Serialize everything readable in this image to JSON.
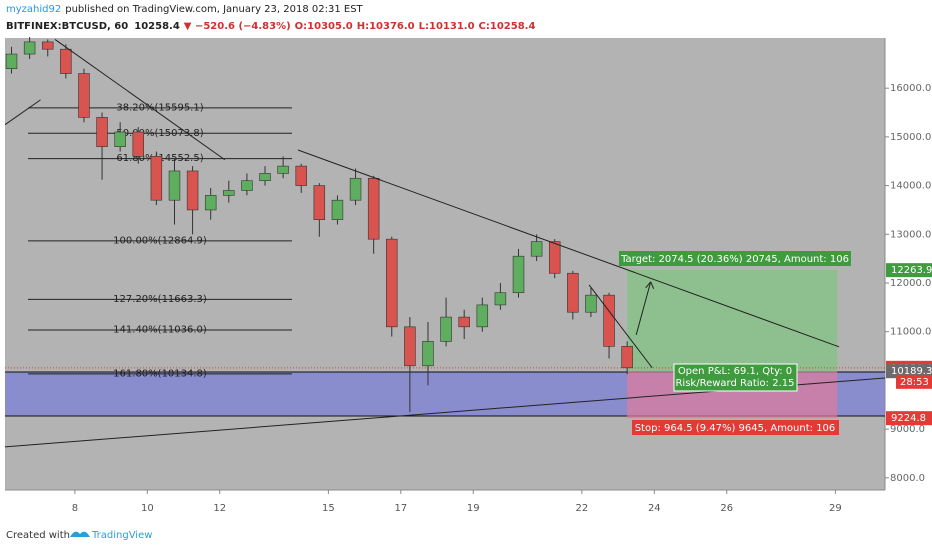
{
  "header": {
    "author": "myzahid92",
    "published": "published on TradingView.com, January 23, 2018 02:31 EST"
  },
  "chart_data": {
    "type": "candlestick",
    "symbol": "BITFINEX:BTCUSD, 60",
    "last": 10258.4,
    "change": "▼ −520.6 (−4.83%)",
    "ohlc": [
      "O:10305.0",
      "H:10376.0",
      "L:10131.0",
      "C:10258.4"
    ],
    "x": [
      6.25,
      6.75,
      7.25,
      7.75,
      8.25,
      8.75,
      9.25,
      9.75,
      10.25,
      10.75,
      11.25,
      11.75,
      12.25,
      12.75,
      13.25,
      13.75,
      14.25,
      14.75,
      15.25,
      15.75,
      16.25,
      16.75,
      17.25,
      17.75,
      18.25,
      18.75,
      19.25,
      19.75,
      20.25,
      20.75,
      21.25,
      21.75,
      22.25,
      22.75,
      23.25
    ],
    "open": [
      16400,
      16700,
      16950,
      16800,
      16300,
      15400,
      14800,
      15100,
      14600,
      13700,
      14300,
      13500,
      13800,
      13900,
      14100,
      14250,
      14400,
      14000,
      13300,
      13700,
      14150,
      12900,
      11100,
      10300,
      10800,
      11300,
      11100,
      11550,
      11800,
      12550,
      12850,
      12200,
      11400,
      11750,
      10700
    ],
    "high": [
      16850,
      17050,
      17000,
      16900,
      16400,
      15500,
      15300,
      15200,
      14700,
      14550,
      14400,
      13950,
      14100,
      14250,
      14400,
      14600,
      14450,
      14050,
      13800,
      14350,
      14200,
      12950,
      11300,
      11200,
      11700,
      11450,
      11700,
      12000,
      12700,
      13000,
      12900,
      12250,
      11900,
      11800,
      10800
    ],
    "low": [
      16300,
      16600,
      16650,
      16200,
      15300,
      14120,
      14700,
      14450,
      13600,
      13200,
      13000,
      13300,
      13650,
      13800,
      14000,
      14150,
      13850,
      12950,
      13200,
      13600,
      12600,
      10900,
      9350,
      9900,
      10700,
      10850,
      11000,
      11450,
      11700,
      12450,
      12100,
      11250,
      11300,
      10450,
      10131
    ],
    "close": [
      16700,
      16950,
      16800,
      16300,
      15400,
      14800,
      15100,
      14600,
      13700,
      14300,
      13500,
      13800,
      13900,
      14100,
      14250,
      14400,
      14000,
      13300,
      13700,
      14150,
      12900,
      11100,
      10300,
      10800,
      11300,
      11100,
      11550,
      11800,
      12550,
      12850,
      12200,
      11400,
      11750,
      10700,
      10258.4
    ],
    "up_color": "#5fae5f",
    "down_color": "#d9534f",
    "xlim": [
      6.07,
      30.37
    ],
    "xticks": [
      8,
      10,
      12,
      15,
      17,
      19,
      22,
      24,
      26,
      29
    ],
    "ylim": [
      7750,
      17030
    ],
    "yticks": [
      {
        "value": 16000,
        "label": "16000.0"
      },
      {
        "value": 15000,
        "label": "15000.0"
      },
      {
        "value": 14000,
        "label": "14000.0"
      },
      {
        "value": 13000,
        "label": "13000.0"
      },
      {
        "value": 12000,
        "label": "12000.0"
      },
      {
        "value": 11000,
        "label": "11000.0"
      },
      {
        "value": 9000,
        "label": "9000.0"
      },
      {
        "value": 8000,
        "label": "8000.0"
      }
    ],
    "grid": false,
    "fib_levels": [
      {
        "value": 15595.1,
        "label": "38.20%(15595.1)"
      },
      {
        "value": 15073.8,
        "label": "50.00%(15073.8)"
      },
      {
        "value": 14552.5,
        "label": "61.80%(14552.5)"
      },
      {
        "value": 12864.9,
        "label": "100.00%(12864.9)"
      },
      {
        "value": 11663.3,
        "label": "127.20%(11663.3)"
      },
      {
        "value": 11036.0,
        "label": "141.40%(11036.0)"
      },
      {
        "value": 10134.8,
        "label": "161.80%(10134.8)"
      }
    ],
    "position": {
      "entry": 10189.3,
      "target": 12263.9,
      "stop": 9224.8,
      "target_label": "Target: 2074.5 (20.36%) 20745, Amount: 106",
      "pnl_label": "Open P&L: 69.1, Qty: 0",
      "rr_label": "Risk/Reward Ratio: 2.15",
      "stop_label": "Stop: 964.5 (9.47%) 9645, Amount: 106"
    },
    "badges": [
      {
        "value": 12263.9,
        "color": "#3e9b3e"
      },
      {
        "value": 10258.4,
        "color": "#e53935"
      },
      {
        "value": 10189.3,
        "color": "#6b6b6b"
      },
      {
        "value": 9224.8,
        "color": "#e53935"
      }
    ],
    "countdown": "28:53"
  },
  "footer": {
    "created": "Created with",
    "brand": "TradingView"
  }
}
